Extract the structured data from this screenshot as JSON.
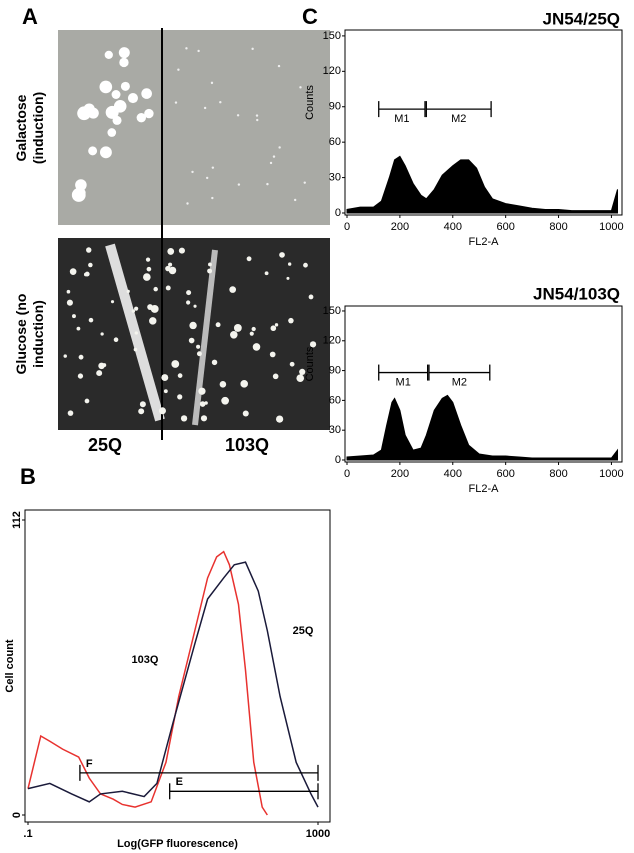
{
  "panel_labels": {
    "a": "A",
    "b": "B",
    "c": "C"
  },
  "photo": {
    "galactose_label": [
      "Galactose",
      "(induction)"
    ],
    "glucose_label": [
      "Glucose (no",
      "induction)"
    ],
    "columns": [
      "25Q",
      "103Q"
    ]
  },
  "chart_data": [
    {
      "type": "area",
      "title": "JN54/25Q",
      "xlabel": "FL2-A",
      "ylabel": "Counts",
      "color": "#000000",
      "x": [
        0,
        50,
        100,
        130,
        160,
        180,
        200,
        220,
        250,
        280,
        300,
        330,
        360,
        400,
        430,
        460,
        490,
        520,
        550,
        600,
        650,
        700,
        750,
        800,
        850,
        900,
        950,
        1000,
        1023
      ],
      "values": [
        3,
        5,
        5,
        10,
        30,
        45,
        48,
        40,
        25,
        15,
        12,
        20,
        32,
        40,
        45,
        45,
        38,
        22,
        12,
        8,
        6,
        4,
        3,
        3,
        2,
        2,
        2,
        2,
        20
      ],
      "xlim": [
        0,
        1040
      ],
      "ylim": [
        0,
        155
      ],
      "xticks": [
        0,
        200,
        400,
        600,
        800,
        1000
      ],
      "yticks": [
        0,
        30,
        60,
        90,
        120,
        150
      ],
      "markers": [
        {
          "label": "M1",
          "range": [
            120,
            295
          ],
          "level": 88
        },
        {
          "label": "M2",
          "range": [
            300,
            545
          ],
          "level": 88
        }
      ]
    },
    {
      "type": "area",
      "title": "JN54/103Q",
      "xlabel": "FL2-A",
      "ylabel": "Counts",
      "color": "#000000",
      "x": [
        0,
        50,
        100,
        130,
        150,
        170,
        180,
        200,
        220,
        250,
        280,
        300,
        330,
        360,
        380,
        400,
        430,
        460,
        500,
        550,
        600,
        650,
        700,
        800,
        900,
        1000,
        1023
      ],
      "values": [
        3,
        4,
        5,
        10,
        35,
        58,
        62,
        50,
        25,
        10,
        12,
        25,
        50,
        62,
        65,
        58,
        35,
        15,
        6,
        4,
        4,
        3,
        2,
        2,
        2,
        2,
        10
      ],
      "xlim": [
        0,
        1040
      ],
      "ylim": [
        0,
        155
      ],
      "xticks": [
        0,
        200,
        400,
        600,
        800,
        1000
      ],
      "yticks": [
        0,
        30,
        60,
        90,
        120,
        150
      ],
      "markers": [
        {
          "label": "M1",
          "range": [
            120,
            305
          ],
          "level": 88
        },
        {
          "label": "M2",
          "range": [
            310,
            540
          ],
          "level": 88
        }
      ]
    },
    {
      "type": "line",
      "xlabel": "Log(GFP fluorescence)",
      "ylabel": "Cell count",
      "xscale": "log",
      "xlim": [
        0.1,
        1000
      ],
      "ylim": [
        0,
        112
      ],
      "xticks": [
        {
          "value": 0.1,
          "label": ".1"
        },
        1000
      ],
      "yticks": [
        0,
        112
      ],
      "series": [
        {
          "name": "103Q",
          "color": "#e8322f",
          "x": [
            0.1,
            0.15,
            0.2,
            0.3,
            0.5,
            0.7,
            1,
            1.5,
            2,
            3,
            5,
            8,
            12,
            20,
            30,
            40,
            50,
            60,
            80,
            100,
            130,
            170,
            200
          ],
          "values": [
            10,
            30,
            28,
            25,
            22,
            14,
            8,
            6,
            4,
            3,
            5,
            20,
            45,
            70,
            90,
            98,
            100,
            95,
            80,
            55,
            20,
            3,
            0
          ]
        },
        {
          "name": "25Q",
          "color": "#1a1a3a",
          "x": [
            0.1,
            0.2,
            0.4,
            0.7,
            1,
            2,
            4,
            6,
            10,
            20,
            30,
            50,
            70,
            100,
            150,
            200,
            300,
            500,
            800,
            1000
          ],
          "values": [
            10,
            12,
            8,
            5,
            8,
            9,
            7,
            12,
            35,
            65,
            82,
            90,
            95,
            96,
            85,
            70,
            45,
            20,
            8,
            3
          ]
        }
      ],
      "markers": [
        {
          "label": "F",
          "range": [
            0.52,
            1000
          ],
          "level": 16
        },
        {
          "label": "E",
          "range": [
            9,
            1000
          ],
          "level": 9
        }
      ]
    }
  ]
}
